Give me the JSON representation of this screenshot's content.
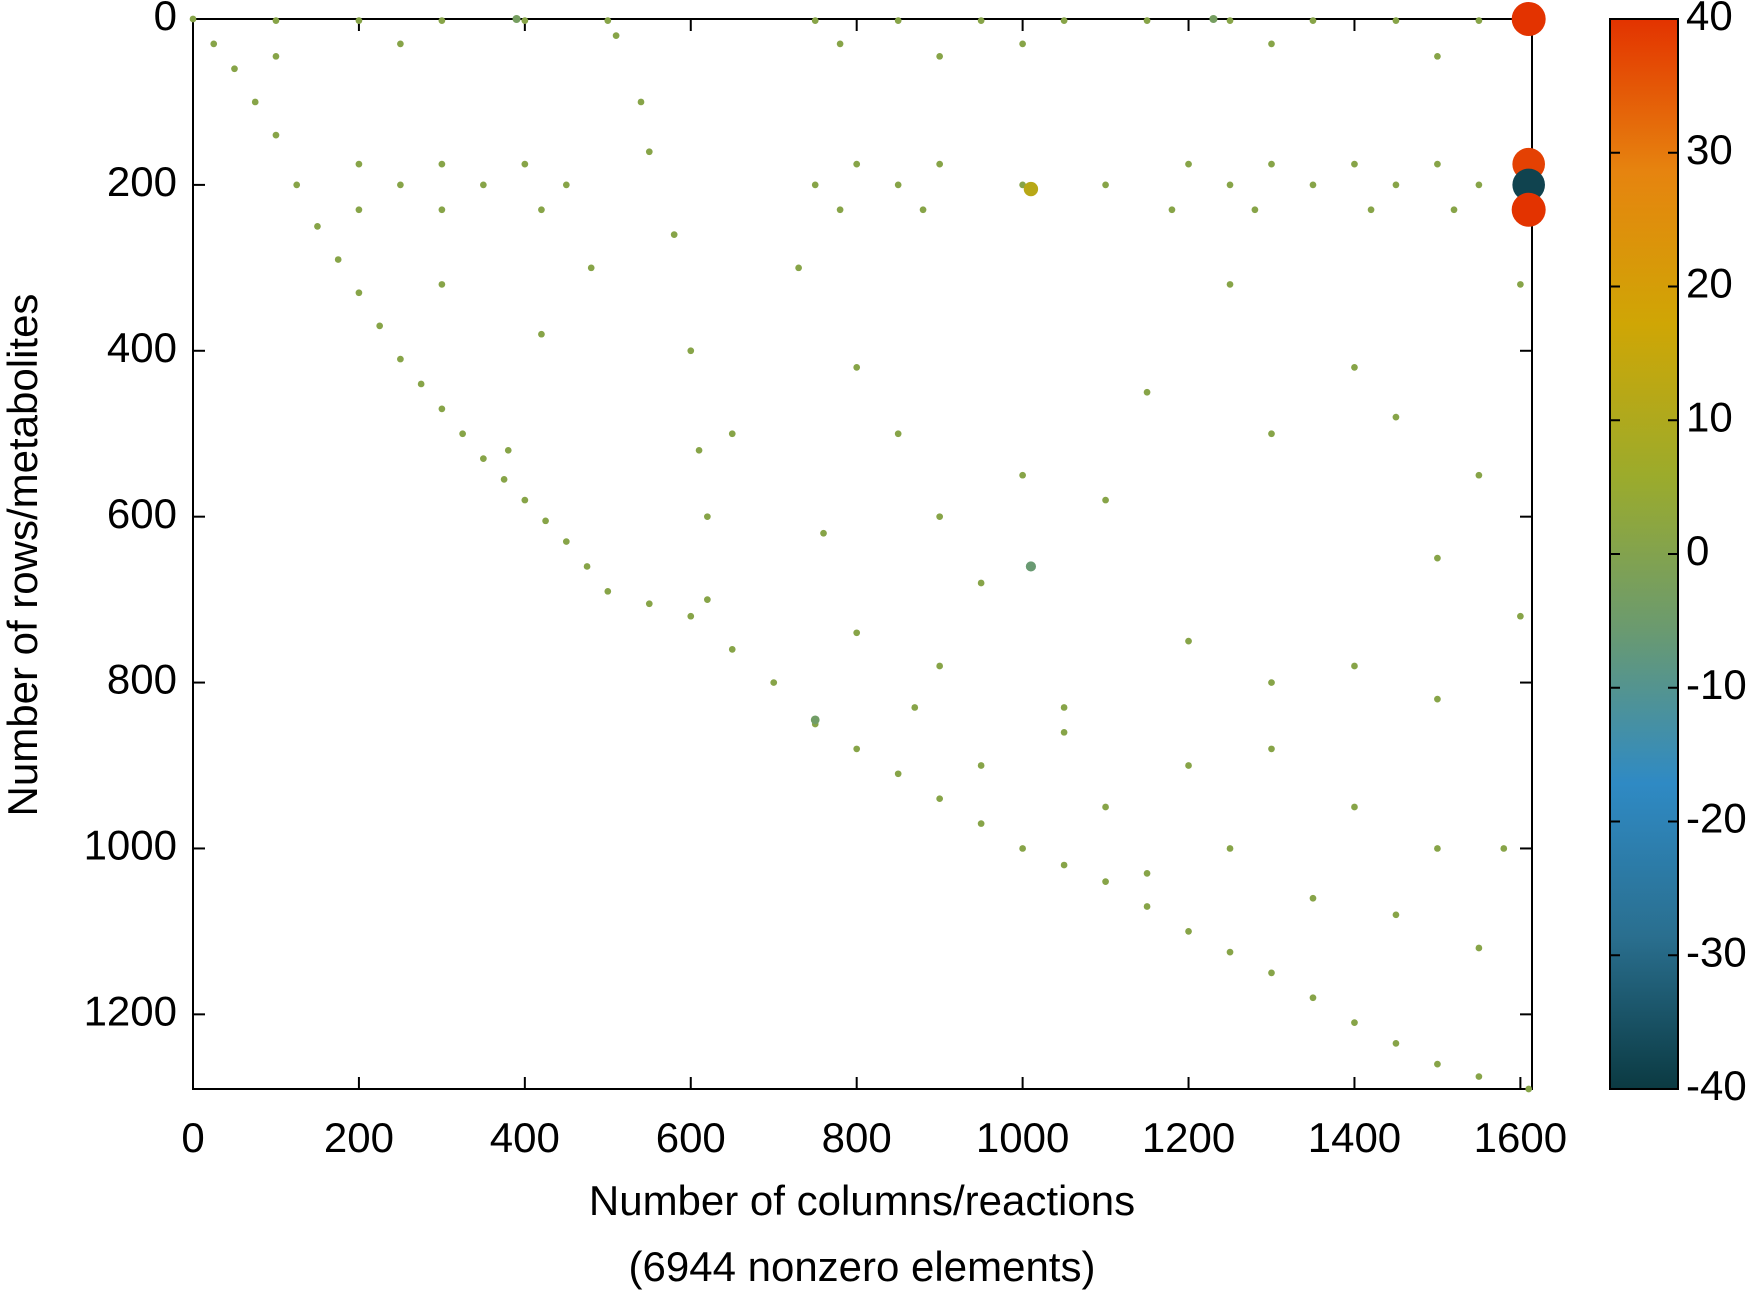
{
  "chart_data": {
    "type": "scatter",
    "x_label": "Number of columns/reactions",
    "x_label_note": "(6944 nonzero elements)",
    "y_label": "Number of rows/metabolites",
    "xlim": [
      0,
      1614
    ],
    "xticks": [
      0,
      200,
      400,
      600,
      800,
      1000,
      1200,
      1400,
      1600
    ],
    "ylim": [
      1290,
      0
    ],
    "yticks": [
      0,
      200,
      400,
      600,
      800,
      1000,
      1200
    ],
    "colorbar_lim": [
      -40,
      40
    ],
    "colorbar_ticks": [
      40,
      30,
      20,
      10,
      0,
      -10,
      -20,
      -30,
      -40
    ],
    "colormap": [
      "#0b3a42",
      "#2a6f8f",
      "#2f8ac4",
      "#6a9a70",
      "#9bab2c",
      "#cfa605",
      "#e6840f",
      "#e33300"
    ],
    "x": [
      0,
      50,
      100,
      150,
      200,
      250,
      300,
      350,
      400,
      450,
      500,
      600,
      700,
      750,
      800,
      900,
      1000,
      1100,
      1200,
      1300,
      1400,
      1500,
      1610,
      25,
      75,
      125,
      175,
      225,
      275,
      325,
      375,
      425,
      475,
      550,
      650,
      850,
      950,
      1050,
      1150,
      1250,
      1350,
      1450,
      1550,
      510,
      540,
      550,
      580,
      600,
      610,
      620,
      620,
      100,
      200,
      300,
      400,
      500,
      750,
      850,
      950,
      1050,
      1150,
      1250,
      1350,
      1450,
      1550,
      250,
      780,
      1000,
      1300,
      100,
      900,
      1500,
      200,
      300,
      400,
      800,
      900,
      1200,
      1300,
      1400,
      1500,
      250,
      350,
      450,
      750,
      850,
      1000,
      1100,
      1250,
      1350,
      1450,
      1550,
      200,
      300,
      420,
      780,
      880,
      1180,
      1280,
      1420,
      1520,
      300,
      420,
      380,
      480,
      730,
      800,
      850,
      900,
      760,
      950,
      1000,
      1100,
      1150,
      1250,
      1300,
      1400,
      1450,
      1500,
      1550,
      1050,
      1200,
      1300,
      1400,
      1500,
      900,
      800,
      1100,
      1200,
      1300,
      1400,
      1500,
      1550,
      1350,
      1450,
      1600,
      1600,
      1580,
      1250,
      1150,
      1050,
      950,
      870,
      650,
      1010,
      1010,
      750,
      1610,
      1610,
      1610,
      1610,
      390,
      1230
    ],
    "y": [
      0,
      60,
      140,
      250,
      330,
      410,
      470,
      530,
      580,
      630,
      690,
      720,
      800,
      850,
      880,
      940,
      1000,
      1040,
      1100,
      1150,
      1210,
      1260,
      1290,
      30,
      100,
      200,
      290,
      370,
      440,
      500,
      555,
      605,
      660,
      705,
      760,
      910,
      970,
      1020,
      1070,
      1125,
      1180,
      1235,
      1275,
      20,
      100,
      160,
      260,
      400,
      520,
      600,
      700,
      2,
      2,
      2,
      2,
      2,
      2,
      2,
      2,
      2,
      2,
      2,
      2,
      2,
      2,
      30,
      30,
      30,
      30,
      45,
      45,
      45,
      175,
      175,
      175,
      175,
      175,
      175,
      175,
      175,
      175,
      200,
      200,
      200,
      200,
      200,
      200,
      200,
      200,
      200,
      200,
      200,
      230,
      230,
      230,
      230,
      230,
      230,
      230,
      230,
      230,
      320,
      380,
      520,
      300,
      300,
      420,
      500,
      600,
      620,
      680,
      550,
      580,
      450,
      320,
      500,
      420,
      480,
      650,
      550,
      830,
      750,
      800,
      780,
      820,
      780,
      740,
      950,
      900,
      880,
      950,
      1000,
      1120,
      1060,
      1080,
      320,
      720,
      1000,
      1000,
      1030,
      860,
      900,
      830,
      500,
      205,
      660,
      845,
      0,
      175,
      200,
      230,
      0,
      0
    ],
    "values": [
      1,
      1,
      1,
      1,
      1,
      1,
      1,
      1,
      1,
      1,
      1,
      1,
      1,
      1,
      1,
      1,
      1,
      1,
      1,
      1,
      1,
      1,
      1,
      1,
      1,
      1,
      1,
      1,
      1,
      1,
      1,
      1,
      1,
      1,
      1,
      1,
      1,
      1,
      1,
      1,
      1,
      1,
      1,
      1,
      1,
      1,
      1,
      1,
      1,
      1,
      1,
      1,
      1,
      1,
      1,
      1,
      1,
      1,
      1,
      1,
      1,
      1,
      1,
      1,
      1,
      1,
      1,
      1,
      1,
      1,
      1,
      1,
      1,
      1,
      1,
      1,
      1,
      1,
      1,
      1,
      1,
      1,
      1,
      1,
      1,
      1,
      1,
      1,
      1,
      1,
      1,
      1,
      1,
      1,
      1,
      1,
      1,
      1,
      1,
      1,
      1,
      1,
      1,
      1,
      1,
      1,
      1,
      1,
      1,
      1,
      1,
      1,
      1,
      1,
      1,
      1,
      1,
      1,
      1,
      1,
      1,
      1,
      1,
      1,
      1,
      1,
      1,
      1,
      1,
      1,
      1,
      1,
      1,
      1,
      1,
      1,
      1,
      1,
      1,
      1,
      1,
      1,
      1,
      1,
      12,
      -6,
      -4,
      40,
      38,
      -38,
      40,
      -3,
      -3
    ]
  }
}
